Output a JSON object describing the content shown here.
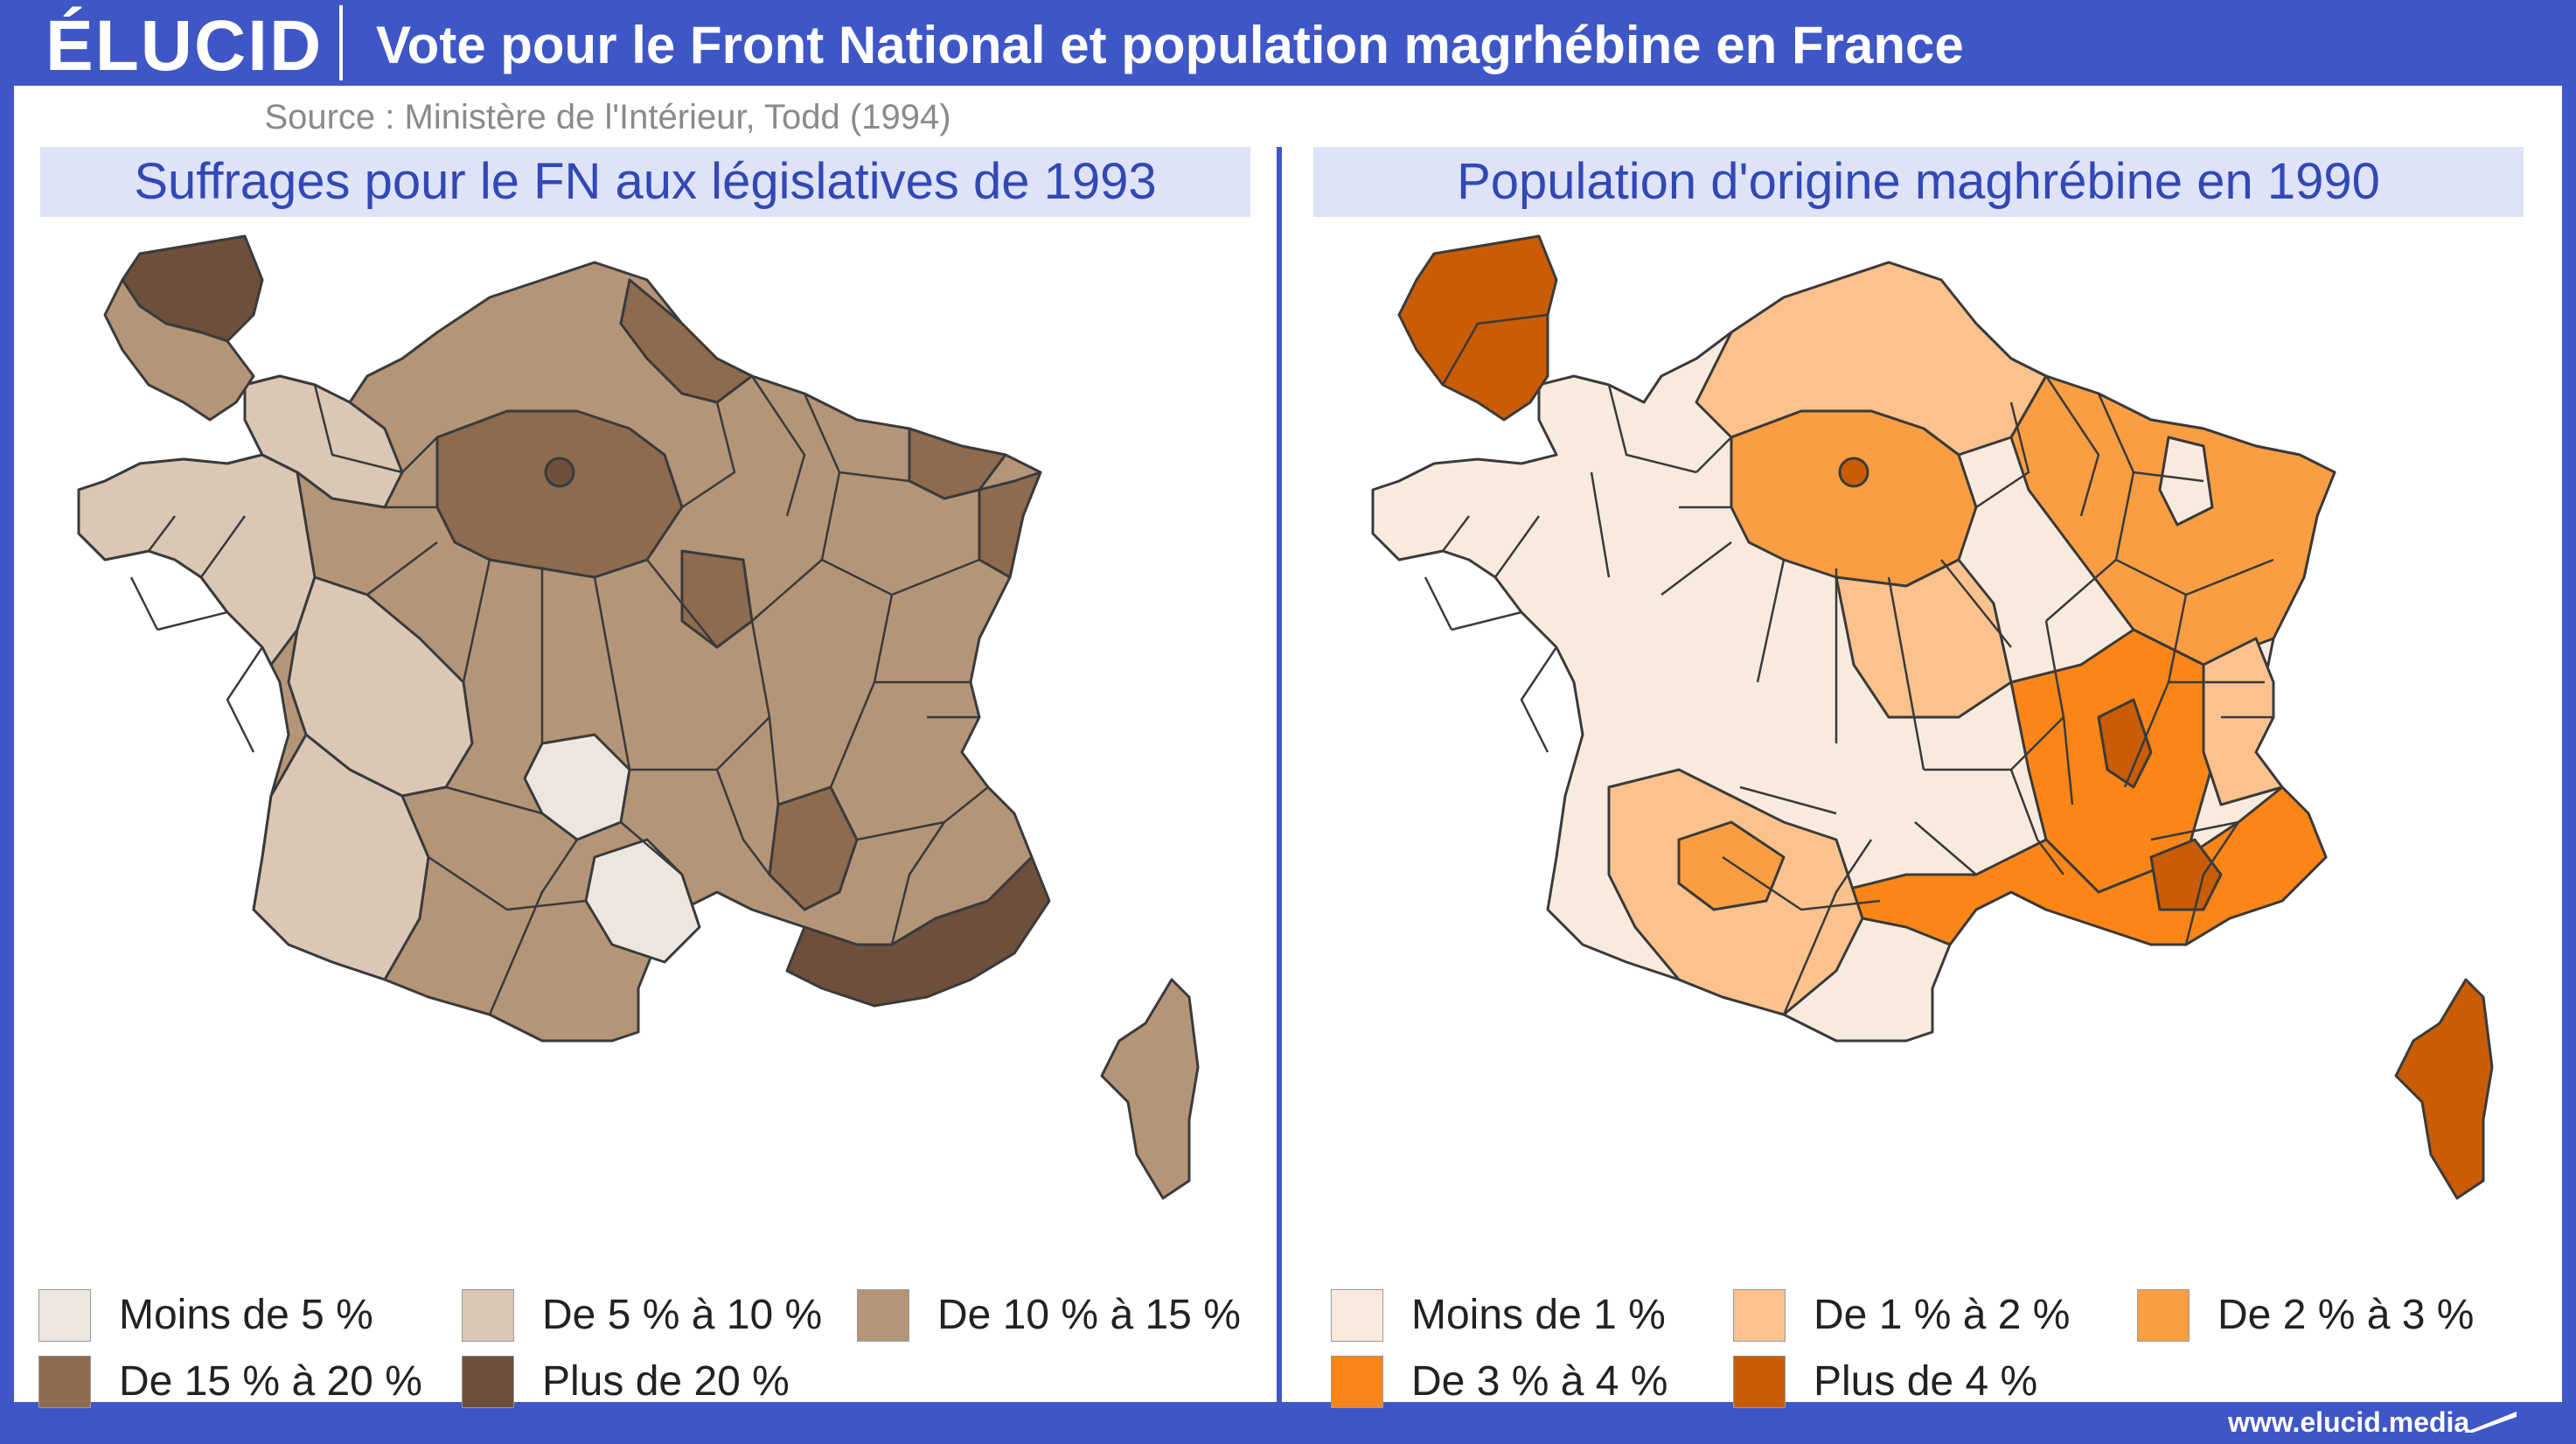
{
  "header": {
    "logo": "ÉLUCID",
    "title": "Vote pour le Front National et population magrhébine en France",
    "source": "Source : Ministère de l'Intérieur, Todd (1994)"
  },
  "left_map": {
    "title": "Suffrages pour le FN aux législatives de 1993",
    "legend": [
      {
        "label": "Moins de 5 %",
        "color": "#ece6df"
      },
      {
        "label": "De 5 % à 10 %",
        "color": "#dbc7b5"
      },
      {
        "label": "De 10 % à 15 %",
        "color": "#b59578"
      },
      {
        "label": "De 15 % à 20 %",
        "color": "#8e6a4f"
      },
      {
        "label": "Plus de 20 %",
        "color": "#6e4f3c"
      }
    ]
  },
  "right_map": {
    "title": "Population d'origine maghrébine en 1990",
    "legend": [
      {
        "label": "Moins de 1 %",
        "color": "#f8ebdd"
      },
      {
        "label": "De 1 % à 2 %",
        "color": "#fbc28d"
      },
      {
        "label": "De 2 % à 3 %",
        "color": "#fb9e43"
      },
      {
        "label": "De 3 % à 4 %",
        "color": "#fb8617"
      },
      {
        "label": "Plus de 4 %",
        "color": "#c95c05"
      }
    ]
  },
  "footer": {
    "url": "www.elucid.media"
  }
}
